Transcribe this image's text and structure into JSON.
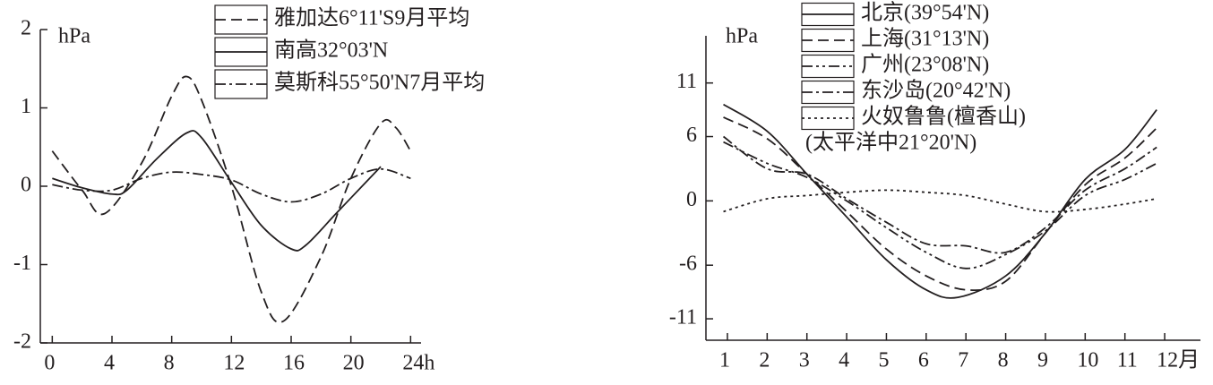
{
  "chart_data": [
    {
      "type": "line",
      "ylabel": "hPa",
      "xlim": [
        -0.8,
        24.7
      ],
      "xticks": [
        0,
        4,
        8,
        12,
        16,
        20,
        {
          "value": 24,
          "label": "24h"
        }
      ],
      "ylim": [
        -2,
        2
      ],
      "yticks": [
        -2,
        -1,
        0,
        1,
        2
      ],
      "series": [
        {
          "name": "雅加达6°11'S9月平均",
          "color": "#231f20",
          "dash": "dashed",
          "x": [
            0,
            2,
            3.5,
            6,
            8,
            9,
            10,
            12,
            14,
            15.5,
            18,
            20,
            22,
            23,
            24
          ],
          "values": [
            0.45,
            -0.05,
            -0.35,
            0.3,
            1.15,
            1.4,
            1.1,
            0.0,
            -1.35,
            -1.72,
            -0.9,
            0.1,
            0.8,
            0.75,
            0.45
          ]
        },
        {
          "name": "南高32°03'N",
          "color": "#231f20",
          "dash": "solid",
          "x": [
            0,
            2,
            4,
            5,
            7,
            9,
            10,
            12,
            14,
            16,
            17,
            19,
            21,
            22
          ],
          "values": [
            0.1,
            -0.02,
            -0.1,
            -0.05,
            0.35,
            0.68,
            0.62,
            0.05,
            -0.5,
            -0.8,
            -0.75,
            -0.35,
            0.05,
            0.25
          ]
        },
        {
          "name": "莫斯科55°50'N7月平均",
          "color": "#231f20",
          "dash": "dashdot",
          "x": [
            0,
            2,
            4,
            6,
            8,
            10,
            12,
            14,
            16,
            18,
            20,
            22,
            24
          ],
          "values": [
            0.02,
            -0.05,
            -0.05,
            0.1,
            0.18,
            0.15,
            0.08,
            -0.1,
            -0.2,
            -0.1,
            0.1,
            0.22,
            0.1
          ]
        }
      ]
    },
    {
      "type": "line",
      "ylabel": "hPa",
      "xlim": [
        0.46,
        12.9
      ],
      "xticks": [
        1,
        2,
        3,
        4,
        5,
        6,
        7,
        8,
        9,
        10,
        11,
        {
          "value": 12,
          "label": "12月"
        }
      ],
      "ylim": [
        -13,
        15.4
      ],
      "yticks": [
        -11,
        -6,
        0,
        6,
        11
      ],
      "series": [
        {
          "name": "北京(39°54'N)",
          "color": "#231f20",
          "dash": "solid",
          "x": [
            0.9,
            2,
            3,
            4,
            5,
            6,
            6.8,
            8,
            9,
            10,
            11,
            11.8
          ],
          "values": [
            9,
            6.5,
            2.5,
            -1.5,
            -5.5,
            -8.3,
            -9,
            -7,
            -3,
            2,
            4.8,
            8.5
          ]
        },
        {
          "name": "上海(31°13'N)",
          "color": "#231f20",
          "dash": "dashed",
          "x": [
            0.9,
            2,
            3,
            4,
            5,
            6,
            7,
            8,
            9,
            10,
            11,
            11.8
          ],
          "values": [
            7.8,
            5.8,
            2.5,
            -1,
            -4.5,
            -7,
            -8.3,
            -7.5,
            -3,
            1.5,
            4,
            6.8
          ]
        },
        {
          "name": "广州(23°08'N)",
          "color": "#231f20",
          "dash": "dashdotdot",
          "x": [
            0.9,
            2,
            3,
            4,
            5,
            6,
            7,
            8,
            9,
            10,
            11,
            11.8
          ],
          "values": [
            5.5,
            3.5,
            2.2,
            0,
            -2.5,
            -4.8,
            -6.3,
            -5,
            -2.8,
            0.5,
            2,
            3.5
          ]
        },
        {
          "name": "东沙岛(20°42'N)",
          "color": "#231f20",
          "dash": "dashdot",
          "x": [
            0.9,
            2,
            3,
            4,
            5,
            6,
            7,
            8,
            9,
            10,
            11,
            11.8
          ],
          "values": [
            6,
            3,
            2.5,
            0.2,
            -2,
            -4,
            -4.2,
            -4.8,
            -2.5,
            1,
            3,
            5
          ]
        },
        {
          "name": "火奴鲁鲁(檀香山)",
          "subname": "(太平洋中21°20'N)",
          "color": "#231f20",
          "dash": "dotted",
          "x": [
            0.9,
            2,
            3,
            4,
            5,
            6,
            7,
            8,
            9,
            10,
            11,
            11.8
          ],
          "values": [
            -1,
            0.2,
            0.5,
            0.8,
            1,
            0.8,
            0.5,
            -0.3,
            -1,
            -0.8,
            -0.3,
            0.2
          ]
        }
      ]
    }
  ]
}
